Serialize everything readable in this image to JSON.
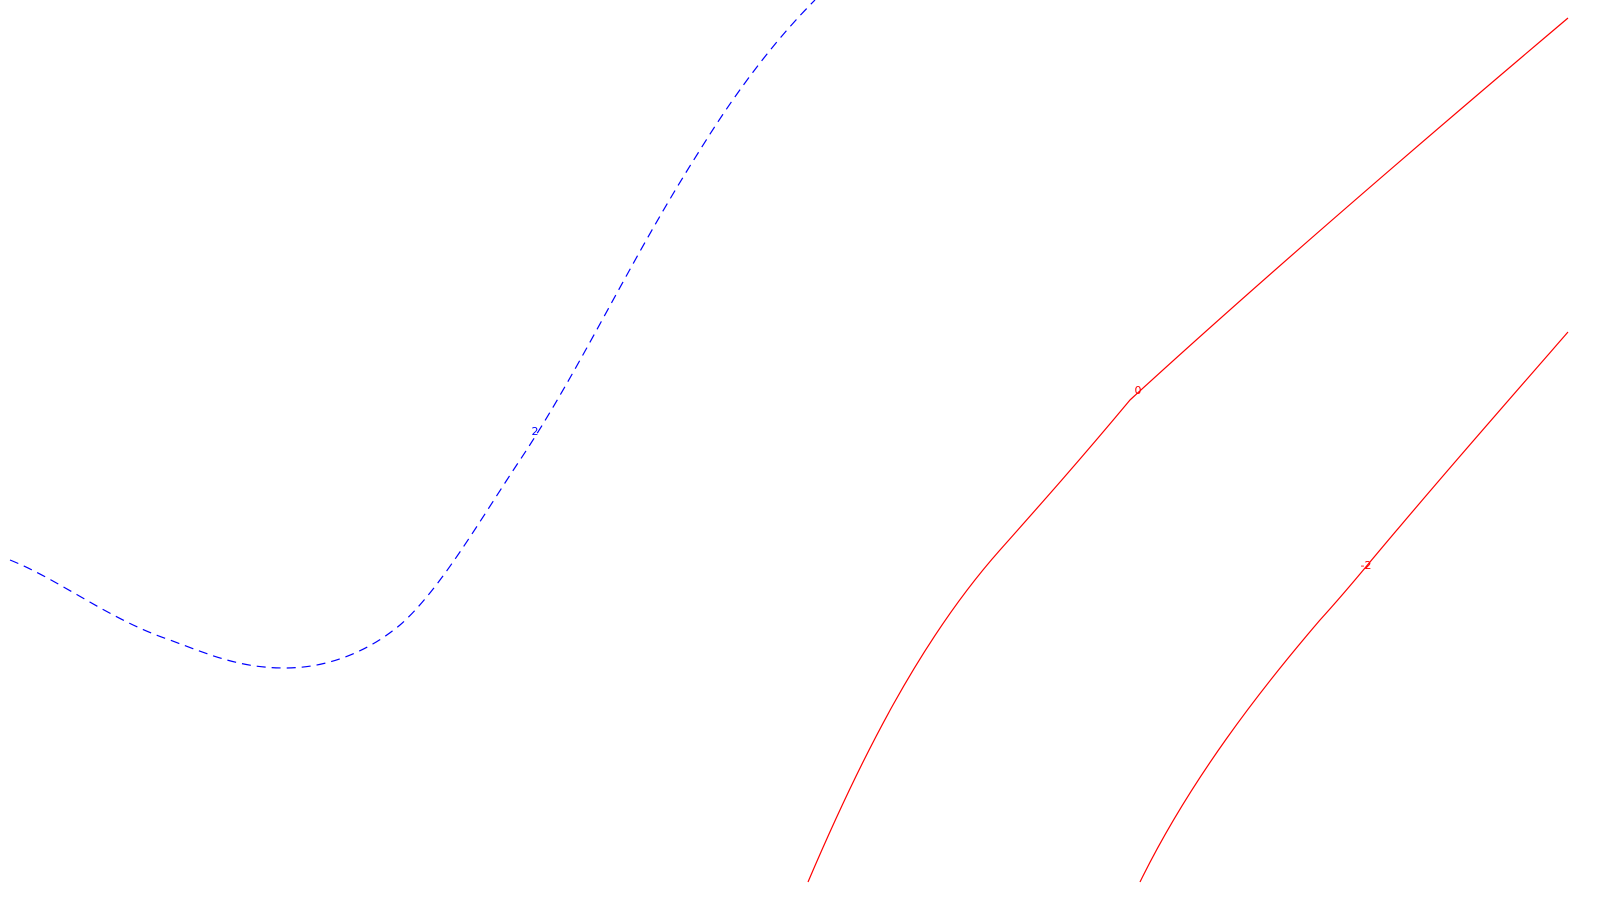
{
  "map": {
    "background": "#ffffff",
    "contours": [
      {
        "id": "contour-2",
        "label": "2",
        "color": "#0000ff",
        "style": "dashed"
      },
      {
        "id": "contour-0",
        "label": "0",
        "color": "#ff0000",
        "style": "solid"
      },
      {
        "id": "contour-neg2",
        "label": "-2",
        "color": "#ff0000",
        "style": "solid"
      }
    ]
  }
}
